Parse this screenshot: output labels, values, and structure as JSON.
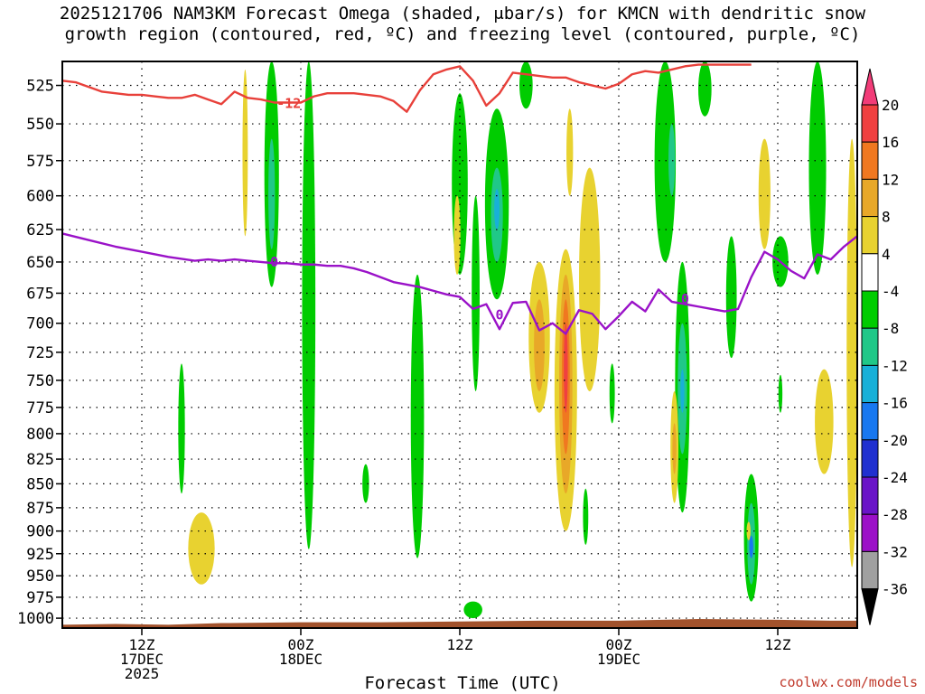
{
  "title_line1": "2025121706 NAM3KM Forecast Omega (shaded, μbar/s) for KMCN with dendritic snow",
  "title_line2": "growth region (contoured, red, ºC) and freezing level (contoured, purple, ºC)",
  "credit": "coolwx.com/models",
  "chart_data": {
    "type": "heatmap",
    "xlabel": "Forecast Time (UTC)",
    "x_ticks": [
      {
        "hour": 6,
        "lines": [
          "12Z",
          "17DEC",
          "2025"
        ]
      },
      {
        "hour": 18,
        "lines": [
          "00Z",
          "18DEC"
        ]
      },
      {
        "hour": 30,
        "lines": [
          "12Z"
        ]
      },
      {
        "hour": 42,
        "lines": [
          "00Z",
          "19DEC"
        ]
      },
      {
        "hour": 54,
        "lines": [
          "12Z"
        ]
      }
    ],
    "xlim": [
      0,
      60
    ],
    "y_ticks": [
      525,
      550,
      575,
      600,
      625,
      650,
      675,
      700,
      725,
      750,
      775,
      800,
      825,
      850,
      875,
      900,
      925,
      950,
      975,
      1000
    ],
    "ylim": [
      510,
      1012
    ],
    "y_scale": "log-pressure",
    "colorbar": {
      "labels": [
        "20",
        "16",
        "12",
        "8",
        "4",
        "-4",
        "-8",
        "-12",
        "-16",
        "-20",
        "-24",
        "-28",
        "-32",
        "-36"
      ],
      "colors": [
        "#f23c78",
        "#f04040",
        "#f07820",
        "#e8a828",
        "#e8d230",
        "#ffffff",
        "#00cc00",
        "#20c888",
        "#18b0d8",
        "#1878f0",
        "#2030d0",
        "#6a14c8",
        "#9c10c8",
        "#a0a0a0",
        "#000000"
      ]
    },
    "dendritic_line": {
      "color": "#e8403a",
      "label": "-12",
      "x": [
        0,
        1,
        2,
        3,
        4,
        5,
        6,
        7,
        8,
        9,
        10,
        11,
        12,
        13,
        14,
        15,
        16,
        17,
        18,
        19,
        20,
        21,
        22,
        23,
        24,
        25,
        26,
        27,
        28,
        29,
        30,
        31,
        32,
        33,
        34,
        35,
        36,
        37,
        38,
        39,
        40,
        41,
        42,
        43,
        44,
        45,
        46,
        47,
        48,
        49,
        50,
        51,
        52
      ],
      "p": [
        522,
        523,
        526,
        529,
        530,
        531,
        531,
        532,
        533,
        533,
        531,
        534,
        537,
        529,
        533,
        534,
        536,
        536,
        536,
        532,
        530,
        530,
        530,
        531,
        532,
        535,
        542,
        528,
        518,
        515,
        513,
        522,
        538,
        530,
        517,
        518,
        519,
        520,
        520,
        523,
        525,
        527,
        524,
        518,
        516,
        517,
        515,
        513,
        512,
        512,
        512,
        512,
        512
      ]
    },
    "freezing_line": {
      "color": "#9a12c8",
      "label": "0",
      "x": [
        0,
        2,
        4,
        6,
        8,
        10,
        11,
        12,
        13,
        14,
        15,
        16,
        17,
        18,
        19,
        20,
        21,
        22,
        23,
        24,
        25,
        26,
        27,
        28,
        29,
        30,
        31,
        32,
        33,
        34,
        35,
        36,
        37,
        38,
        39,
        40,
        41,
        42,
        43,
        44,
        45,
        46,
        47,
        48,
        49,
        50,
        51,
        52,
        53,
        54,
        55,
        56,
        57,
        58,
        59,
        60
      ],
      "p": [
        628,
        633,
        638,
        642,
        646,
        649,
        648,
        649,
        648,
        649,
        650,
        651,
        651,
        652,
        652,
        653,
        653,
        655,
        658,
        662,
        666,
        668,
        670,
        673,
        676,
        678,
        688,
        684,
        705,
        683,
        682,
        706,
        700,
        709,
        689,
        692,
        705,
        694,
        682,
        690,
        672,
        682,
        684,
        686,
        688,
        690,
        688,
        662,
        642,
        648,
        657,
        663,
        644,
        648,
        638,
        630
      ]
    },
    "shaded_regions": [
      {
        "level": "-4",
        "hour": 15.8,
        "p_top": 510,
        "p_bottom": 670,
        "width_h": 1.1
      },
      {
        "level": "-8",
        "hour": 15.8,
        "p_top": 560,
        "p_bottom": 640,
        "width_h": 0.5
      },
      {
        "level": "-4",
        "hour": 18.6,
        "p_top": 510,
        "p_bottom": 920,
        "width_h": 1.0
      },
      {
        "level": "-4",
        "hour": 9.0,
        "p_top": 735,
        "p_bottom": 860,
        "width_h": 0.5
      },
      {
        "level": "-4",
        "hour": 22.9,
        "p_top": 830,
        "p_bottom": 870,
        "width_h": 0.5
      },
      {
        "level": "-4",
        "hour": 26.8,
        "p_top": 660,
        "p_bottom": 930,
        "width_h": 1.0
      },
      {
        "level": "-4",
        "hour": 30.0,
        "p_top": 530,
        "p_bottom": 660,
        "width_h": 1.2
      },
      {
        "level": "-4",
        "hour": 31.2,
        "p_top": 600,
        "p_bottom": 760,
        "width_h": 0.6
      },
      {
        "level": "-4",
        "hour": 32.8,
        "p_top": 540,
        "p_bottom": 680,
        "width_h": 1.8
      },
      {
        "level": "-8",
        "hour": 32.8,
        "p_top": 580,
        "p_bottom": 650,
        "width_h": 0.9
      },
      {
        "level": "-12",
        "hour": 32.8,
        "p_top": 595,
        "p_bottom": 625,
        "width_h": 0.4
      },
      {
        "level": "-4",
        "hour": 31.0,
        "p_top": 980,
        "p_bottom": 1000,
        "width_h": 1.4
      },
      {
        "level": "-4",
        "hour": 35.0,
        "p_top": 510,
        "p_bottom": 540,
        "width_h": 1.0
      },
      {
        "level": "-4",
        "hour": 39.5,
        "p_top": 855,
        "p_bottom": 915,
        "width_h": 0.4
      },
      {
        "level": "-4",
        "hour": 41.5,
        "p_top": 735,
        "p_bottom": 790,
        "width_h": 0.4
      },
      {
        "level": "-4",
        "hour": 45.5,
        "p_top": 510,
        "p_bottom": 650,
        "width_h": 1.6
      },
      {
        "level": "-8",
        "hour": 46.0,
        "p_top": 550,
        "p_bottom": 600,
        "width_h": 0.5
      },
      {
        "level": "-4",
        "hour": 48.5,
        "p_top": 510,
        "p_bottom": 545,
        "width_h": 1.0
      },
      {
        "level": "-4",
        "hour": 46.8,
        "p_top": 650,
        "p_bottom": 880,
        "width_h": 1.1
      },
      {
        "level": "-8",
        "hour": 46.8,
        "p_top": 700,
        "p_bottom": 820,
        "width_h": 0.7
      },
      {
        "level": "-12",
        "hour": 46.8,
        "p_top": 740,
        "p_bottom": 780,
        "width_h": 0.3
      },
      {
        "level": "-4",
        "hour": 50.5,
        "p_top": 630,
        "p_bottom": 730,
        "width_h": 0.8
      },
      {
        "level": "-4",
        "hour": 52.0,
        "p_top": 840,
        "p_bottom": 980,
        "width_h": 1.1
      },
      {
        "level": "-8",
        "hour": 52.0,
        "p_top": 870,
        "p_bottom": 960,
        "width_h": 0.6
      },
      {
        "level": "-16",
        "hour": 52.0,
        "p_top": 905,
        "p_bottom": 930,
        "width_h": 0.3
      },
      {
        "level": "-4",
        "hour": 54.2,
        "p_top": 630,
        "p_bottom": 670,
        "width_h": 1.2
      },
      {
        "level": "-4",
        "hour": 54.2,
        "p_top": 745,
        "p_bottom": 780,
        "width_h": 0.3
      },
      {
        "level": "-4",
        "hour": 57.0,
        "p_top": 510,
        "p_bottom": 660,
        "width_h": 1.3
      },
      {
        "level": "4",
        "hour": 13.8,
        "p_top": 515,
        "p_bottom": 630,
        "width_h": 0.4
      },
      {
        "level": "4",
        "hour": 10.5,
        "p_top": 880,
        "p_bottom": 960,
        "width_h": 2.0
      },
      {
        "level": "4",
        "hour": 29.8,
        "p_top": 600,
        "p_bottom": 660,
        "width_h": 0.5
      },
      {
        "level": "4",
        "hour": 36.0,
        "p_top": 650,
        "p_bottom": 780,
        "width_h": 1.6
      },
      {
        "level": "8",
        "hour": 36.0,
        "p_top": 680,
        "p_bottom": 760,
        "width_h": 0.8
      },
      {
        "level": "4",
        "hour": 38.0,
        "p_top": 640,
        "p_bottom": 900,
        "width_h": 1.7
      },
      {
        "level": "8",
        "hour": 38.0,
        "p_top": 660,
        "p_bottom": 860,
        "width_h": 1.0
      },
      {
        "level": "12",
        "hour": 38.0,
        "p_top": 680,
        "p_bottom": 820,
        "width_h": 0.6
      },
      {
        "level": "16",
        "hour": 38.0,
        "p_top": 700,
        "p_bottom": 780,
        "width_h": 0.3
      },
      {
        "level": "4",
        "hour": 39.8,
        "p_top": 580,
        "p_bottom": 760,
        "width_h": 1.6
      },
      {
        "level": "4",
        "hour": 38.3,
        "p_top": 540,
        "p_bottom": 600,
        "width_h": 0.5
      },
      {
        "level": "4",
        "hour": 46.2,
        "p_top": 760,
        "p_bottom": 870,
        "width_h": 0.6
      },
      {
        "level": "8",
        "hour": 46.2,
        "p_top": 790,
        "p_bottom": 840,
        "width_h": 0.3
      },
      {
        "level": "4",
        "hour": 53.0,
        "p_top": 560,
        "p_bottom": 640,
        "width_h": 0.9
      },
      {
        "level": "4",
        "hour": 51.8,
        "p_top": 890,
        "p_bottom": 910,
        "width_h": 0.3
      },
      {
        "level": "4",
        "hour": 57.5,
        "p_top": 740,
        "p_bottom": 840,
        "width_h": 1.4
      },
      {
        "level": "4",
        "hour": 59.6,
        "p_top": 560,
        "p_bottom": 940,
        "width_h": 0.8
      }
    ],
    "terrain": {
      "color": "#a2522c",
      "x": [
        0,
        4,
        8,
        12,
        18,
        24,
        30,
        36,
        42,
        48,
        54,
        58,
        60
      ],
      "p": [
        1008,
        1007,
        1008,
        1006,
        1005,
        1005,
        1004,
        1003,
        1003,
        1001,
        1002,
        1003,
        1003
      ]
    }
  }
}
